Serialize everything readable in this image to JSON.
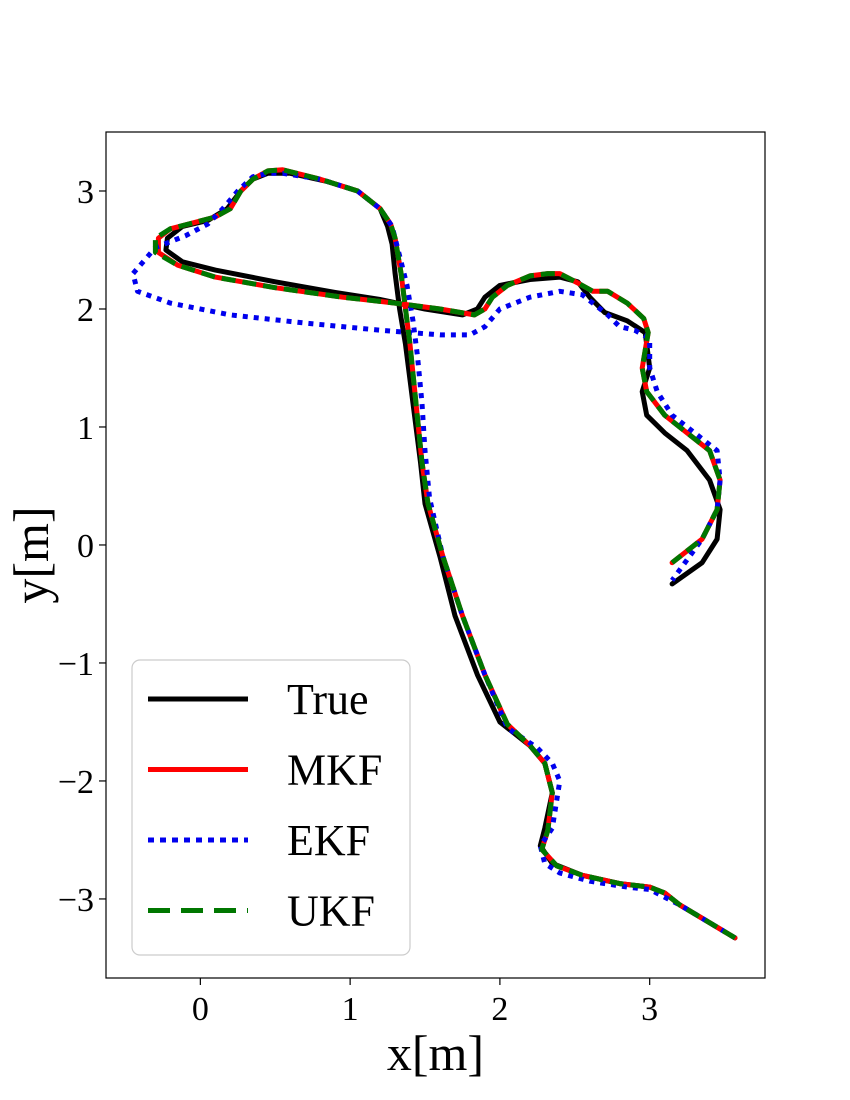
{
  "chart_data": {
    "type": "line",
    "title": "",
    "xlabel": "x[m]",
    "ylabel": "y[m]",
    "xlim": [
      -0.63,
      3.77
    ],
    "ylim": [
      -3.67,
      3.5
    ],
    "xticks": [
      0,
      1,
      2,
      3
    ],
    "xtick_labels": [
      "0",
      "1",
      "2",
      "3"
    ],
    "yticks": [
      3,
      2,
      1,
      0,
      -1,
      -2,
      -3
    ],
    "ytick_labels": [
      "3",
      "2",
      "1",
      "0",
      "−1",
      "−2",
      "−3"
    ],
    "grid": false,
    "legend_position": "lower-left",
    "series": [
      {
        "name": "True",
        "color": "#000000",
        "style": "solid",
        "x": [
          3.57,
          3.2,
          3.1,
          3.0,
          2.8,
          2.55,
          2.35,
          2.27,
          2.3,
          2.35,
          2.3,
          2.2,
          2.0,
          1.85,
          1.7,
          1.6,
          1.5,
          1.47,
          1.42,
          1.37,
          1.33,
          1.3,
          1.28,
          1.25,
          1.2,
          1.05,
          0.85,
          0.6,
          0.45,
          0.35,
          0.27,
          0.18,
          0.05,
          -0.12,
          -0.22,
          -0.23,
          -0.12,
          0.1,
          0.5,
          0.9,
          1.2,
          1.5,
          1.75,
          1.85,
          1.9,
          2.0,
          2.2,
          2.4,
          2.52,
          2.6,
          2.7,
          2.85,
          2.97,
          3.0,
          2.95,
          2.98,
          3.1,
          3.25,
          3.4,
          3.47,
          3.45,
          3.35,
          3.15
        ],
        "y": [
          -3.33,
          -3.05,
          -2.95,
          -2.9,
          -2.87,
          -2.8,
          -2.7,
          -2.55,
          -2.4,
          -2.1,
          -1.85,
          -1.7,
          -1.5,
          -1.1,
          -0.6,
          -0.1,
          0.35,
          0.7,
          1.2,
          1.7,
          2.0,
          2.3,
          2.55,
          2.7,
          2.85,
          3.0,
          3.08,
          3.15,
          3.15,
          3.1,
          3.0,
          2.85,
          2.75,
          2.7,
          2.6,
          2.5,
          2.4,
          2.33,
          2.23,
          2.14,
          2.08,
          2.0,
          1.95,
          2.0,
          2.1,
          2.2,
          2.25,
          2.27,
          2.23,
          2.1,
          1.97,
          1.9,
          1.8,
          1.5,
          1.3,
          1.1,
          0.95,
          0.8,
          0.55,
          0.3,
          0.05,
          -0.15,
          -0.33
        ]
      },
      {
        "name": "MKF",
        "color": "#ff0000",
        "style": "solid",
        "x": [
          3.57,
          3.2,
          3.1,
          3.0,
          2.8,
          2.55,
          2.38,
          2.28,
          2.32,
          2.35,
          2.3,
          2.2,
          2.05,
          1.9,
          1.75,
          1.62,
          1.52,
          1.48,
          1.44,
          1.4,
          1.37,
          1.34,
          1.3,
          1.27,
          1.2,
          1.05,
          0.8,
          0.55,
          0.45,
          0.35,
          0.27,
          0.2,
          0.1,
          -0.05,
          -0.2,
          -0.28,
          -0.28,
          -0.15,
          0.1,
          0.5,
          0.95,
          1.3,
          1.6,
          1.83,
          1.9,
          1.95,
          2.05,
          2.2,
          2.32,
          2.4,
          2.52,
          2.62,
          2.72,
          2.85,
          2.96,
          2.99,
          2.95,
          2.98,
          3.1,
          3.25,
          3.4,
          3.47,
          3.45,
          3.35,
          3.15
        ],
        "y": [
          -3.33,
          -3.05,
          -2.95,
          -2.9,
          -2.87,
          -2.8,
          -2.72,
          -2.58,
          -2.42,
          -2.1,
          -1.85,
          -1.7,
          -1.52,
          -1.1,
          -0.6,
          -0.1,
          0.35,
          0.7,
          1.2,
          1.7,
          2.0,
          2.3,
          2.6,
          2.72,
          2.85,
          3.0,
          3.1,
          3.18,
          3.17,
          3.1,
          3.0,
          2.85,
          2.78,
          2.73,
          2.68,
          2.6,
          2.48,
          2.37,
          2.27,
          2.18,
          2.1,
          2.05,
          2.0,
          1.95,
          2.0,
          2.1,
          2.2,
          2.28,
          2.3,
          2.3,
          2.22,
          2.15,
          2.15,
          2.05,
          1.92,
          1.8,
          1.5,
          1.3,
          1.1,
          0.95,
          0.8,
          0.55,
          0.3,
          0.05,
          -0.15
        ]
      },
      {
        "name": "EKF",
        "color": "#0000ee",
        "style": "dotted",
        "x": [
          3.57,
          3.2,
          3.0,
          2.85,
          2.6,
          2.4,
          2.3,
          2.27,
          2.35,
          2.4,
          2.35,
          2.25,
          2.05,
          1.9,
          1.75,
          1.62,
          1.53,
          1.5,
          1.48,
          1.45,
          1.42,
          1.38,
          1.33,
          1.28,
          1.2,
          1.05,
          0.8,
          0.55,
          0.45,
          0.35,
          0.25,
          0.15,
          0.05,
          -0.1,
          -0.3,
          -0.45,
          -0.42,
          -0.2,
          0.2,
          0.7,
          1.2,
          1.6,
          1.8,
          1.9,
          2.0,
          2.2,
          2.4,
          2.55,
          2.62,
          2.72,
          2.8,
          2.9,
          3.0,
          3.0,
          3.05,
          3.15,
          3.3,
          3.45,
          3.47,
          3.45,
          3.35,
          3.15
        ],
        "y": [
          -3.33,
          -3.05,
          -2.92,
          -2.9,
          -2.85,
          -2.78,
          -2.7,
          -2.55,
          -2.4,
          -2.0,
          -1.85,
          -1.72,
          -1.55,
          -1.1,
          -0.6,
          -0.1,
          0.4,
          0.8,
          1.2,
          1.6,
          1.9,
          2.2,
          2.45,
          2.7,
          2.85,
          3.0,
          3.1,
          3.15,
          3.15,
          3.12,
          3.0,
          2.85,
          2.72,
          2.62,
          2.52,
          2.3,
          2.15,
          2.05,
          1.95,
          1.88,
          1.82,
          1.78,
          1.78,
          1.85,
          2.0,
          2.1,
          2.15,
          2.12,
          2.05,
          1.95,
          1.85,
          1.82,
          1.75,
          1.5,
          1.3,
          1.1,
          0.95,
          0.8,
          0.55,
          0.3,
          0.05,
          -0.3
        ]
      },
      {
        "name": "UKF",
        "color": "#007700",
        "style": "dashed",
        "x": [
          3.57,
          3.2,
          3.1,
          3.0,
          2.8,
          2.55,
          2.38,
          2.28,
          2.32,
          2.35,
          2.3,
          2.2,
          2.05,
          1.9,
          1.75,
          1.62,
          1.52,
          1.48,
          1.44,
          1.4,
          1.37,
          1.34,
          1.3,
          1.27,
          1.2,
          1.05,
          0.8,
          0.55,
          0.45,
          0.35,
          0.27,
          0.2,
          0.1,
          -0.05,
          -0.2,
          -0.3,
          -0.3,
          -0.15,
          0.1,
          0.5,
          0.95,
          1.3,
          1.6,
          1.83,
          1.9,
          1.95,
          2.05,
          2.2,
          2.32,
          2.4,
          2.52,
          2.62,
          2.72,
          2.85,
          2.96,
          2.99,
          2.95,
          2.98,
          3.1,
          3.25,
          3.4,
          3.47,
          3.45,
          3.35,
          3.15
        ],
        "y": [
          -3.33,
          -3.05,
          -2.95,
          -2.9,
          -2.87,
          -2.8,
          -2.72,
          -2.58,
          -2.42,
          -2.1,
          -1.85,
          -1.7,
          -1.52,
          -1.1,
          -0.6,
          -0.1,
          0.35,
          0.7,
          1.2,
          1.7,
          2.0,
          2.3,
          2.6,
          2.72,
          2.85,
          3.0,
          3.1,
          3.18,
          3.17,
          3.1,
          3.0,
          2.85,
          2.78,
          2.73,
          2.68,
          2.6,
          2.48,
          2.37,
          2.27,
          2.18,
          2.1,
          2.05,
          2.0,
          1.95,
          2.0,
          2.1,
          2.2,
          2.28,
          2.3,
          2.3,
          2.22,
          2.15,
          2.15,
          2.05,
          1.92,
          1.8,
          1.5,
          1.3,
          1.1,
          0.95,
          0.8,
          0.55,
          0.3,
          0.05,
          -0.15
        ]
      }
    ]
  }
}
